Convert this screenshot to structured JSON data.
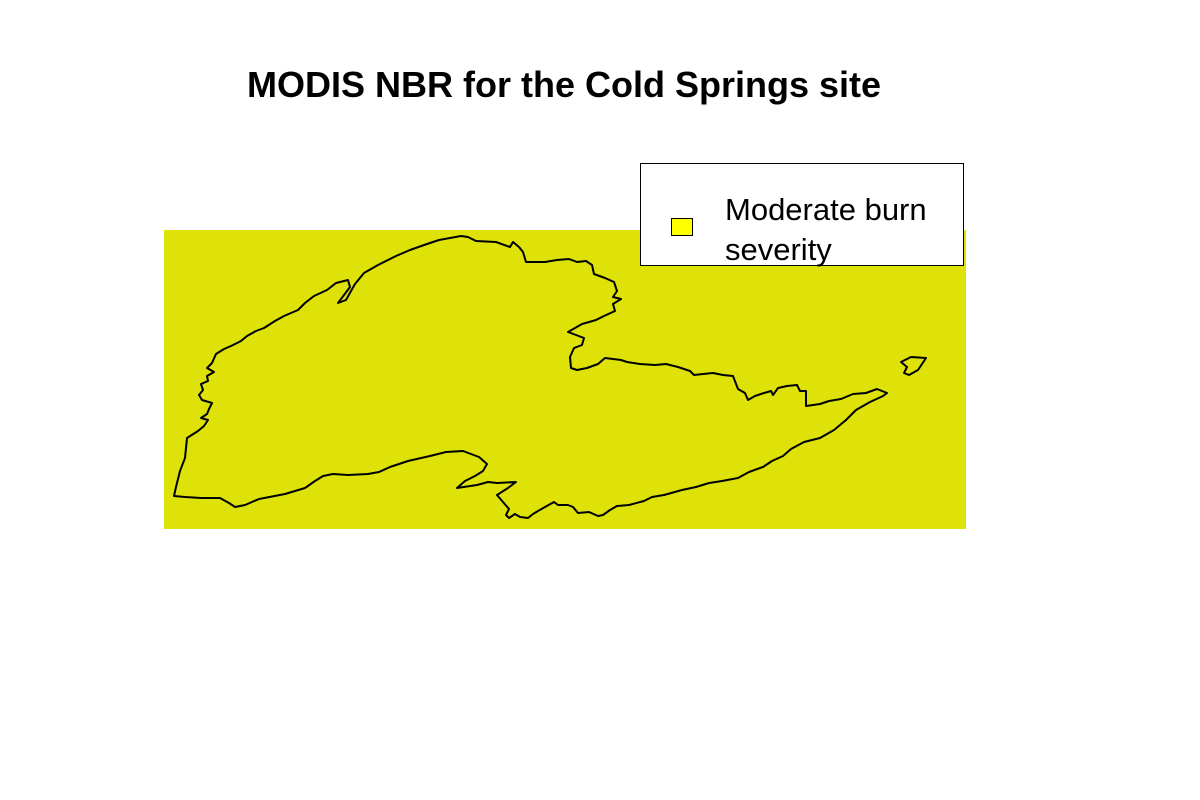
{
  "title": "MODIS NBR for the Cold Springs site",
  "map": {
    "raster_class": "Moderate burn severity",
    "raster_color": "#dfe208",
    "boundary_color": "#000000"
  },
  "legend": {
    "entries": [
      {
        "label": "Moderate burn severity",
        "swatch_color": "#ffff00"
      }
    ]
  }
}
